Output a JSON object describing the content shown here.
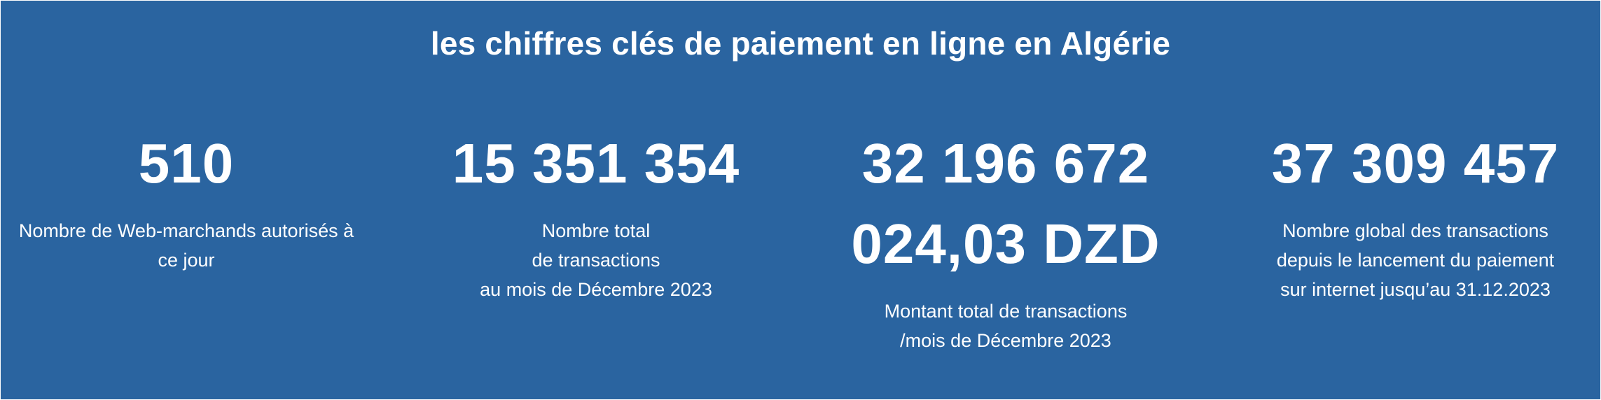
{
  "header": {
    "title": "les chiffres clés de paiement en ligne en Algérie"
  },
  "stats": [
    {
      "value": "510",
      "description": "Nombre de Web-marchands autorisés à\nce jour"
    },
    {
      "value": "15 351 354",
      "description": "Nombre total\nde transactions\nau mois de Décembre 2023"
    },
    {
      "value": "32 196 672\n024,03 DZD",
      "description": "Montant total de transactions\n/mois de Décembre 2023"
    },
    {
      "value": "37 309 457",
      "description": "Nombre global des transactions\ndepuis le lancement du paiement\nsur internet jusqu’au 31.12.2023"
    }
  ],
  "colors": {
    "background": "#2a64a0",
    "text": "#ffffff"
  }
}
